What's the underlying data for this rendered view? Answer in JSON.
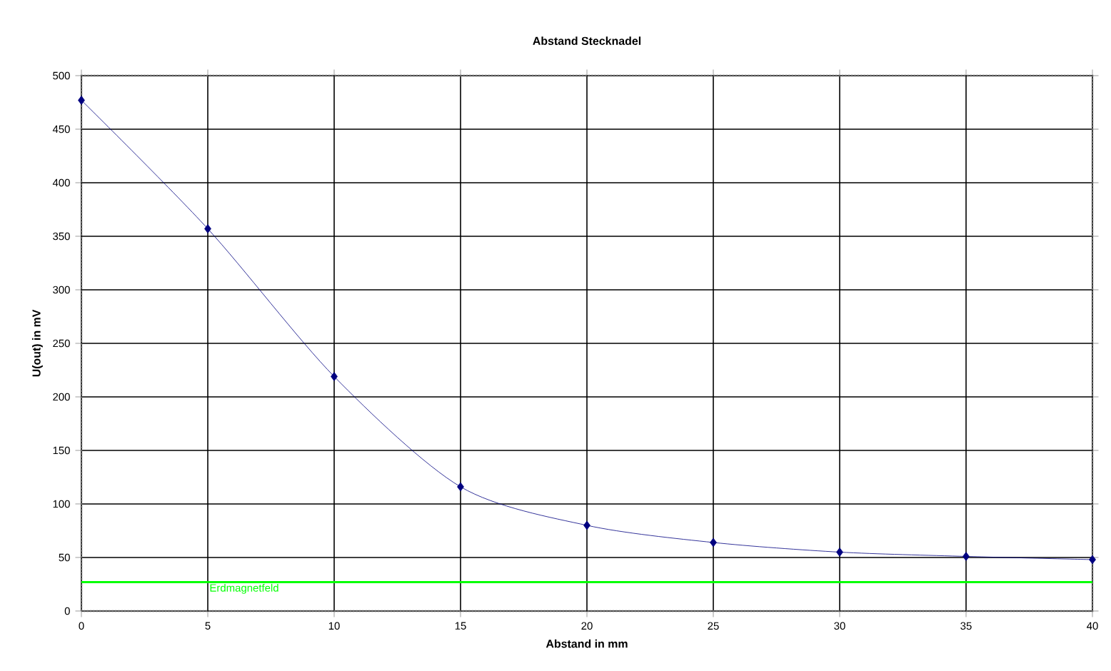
{
  "chart_data": {
    "type": "line",
    "title": "Abstand Stecknadel",
    "xlabel": "Abstand in mm",
    "ylabel": "U(out) in mV",
    "x": [
      0,
      5,
      10,
      15,
      20,
      25,
      30,
      35,
      40
    ],
    "series": [
      {
        "color": "#000080",
        "values": [
          477,
          357,
          219,
          116,
          80,
          64,
          55,
          51,
          48
        ]
      }
    ],
    "xlim": [
      0,
      40
    ],
    "xticks": [
      0,
      5,
      10,
      15,
      20,
      25,
      30,
      35,
      40
    ],
    "ylim": [
      0,
      500
    ],
    "yticks": [
      0,
      50,
      100,
      150,
      200,
      250,
      300,
      350,
      400,
      450,
      500
    ],
    "grid": true,
    "marker": "diamond",
    "line_style": "solid",
    "ref_lines": [
      {
        "axis": "y",
        "value": 27,
        "label": "Erdmagnetfeld",
        "color": "#00ff00"
      }
    ]
  }
}
